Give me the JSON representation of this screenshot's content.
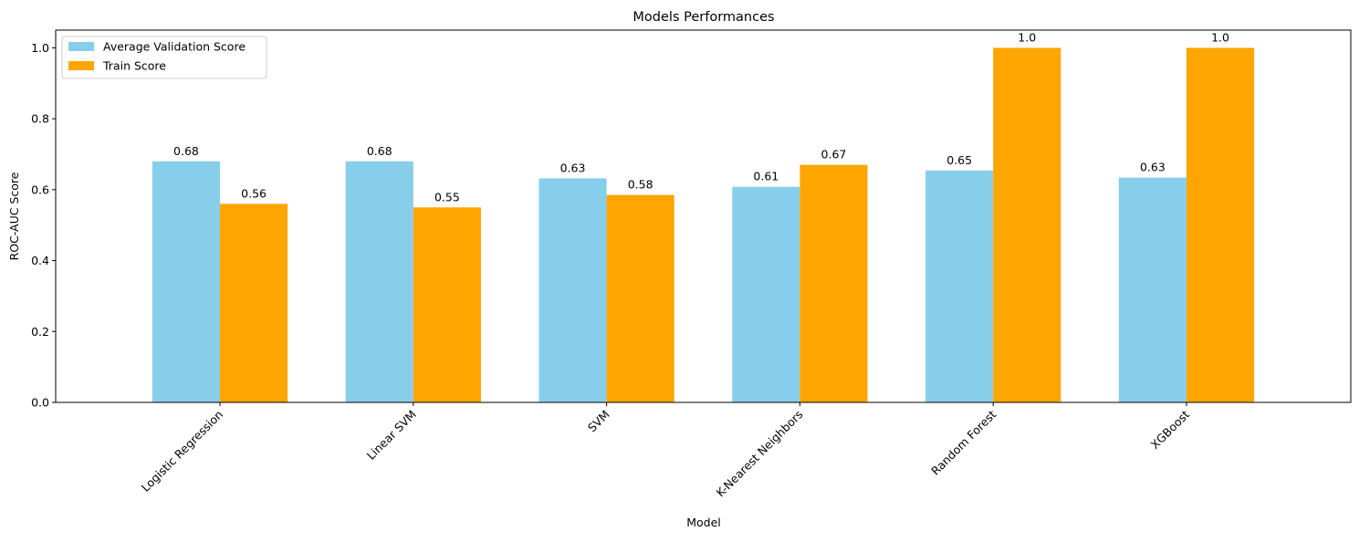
{
  "chart_data": {
    "type": "bar",
    "title": "Models Performances",
    "xlabel": "Model",
    "ylabel": "ROC-AUC Score",
    "categories": [
      "Logistic Regression",
      "Linear SVM",
      "SVM",
      "K-Nearest Neighbors",
      "Random Forest",
      "XGBoost"
    ],
    "series": [
      {
        "name": "Average Validation Score",
        "color": "#87CEEB",
        "values": [
          0.68,
          0.68,
          0.632,
          0.608,
          0.654,
          0.634
        ],
        "labels": [
          "0.68",
          "0.68",
          "0.63",
          "0.61",
          "0.65",
          "0.63"
        ]
      },
      {
        "name": "Train Score",
        "color": "#FFA500",
        "values": [
          0.56,
          0.55,
          0.585,
          0.67,
          1.0,
          1.0
        ],
        "labels": [
          "0.56",
          "0.55",
          "0.58",
          "0.67",
          "1.0",
          "1.0"
        ]
      }
    ],
    "ylim": [
      0,
      1.05
    ],
    "yticks": [
      "0.0",
      "0.2",
      "0.4",
      "0.6",
      "0.8",
      "1.0"
    ],
    "grid": false,
    "legend_position": "upper-left"
  }
}
